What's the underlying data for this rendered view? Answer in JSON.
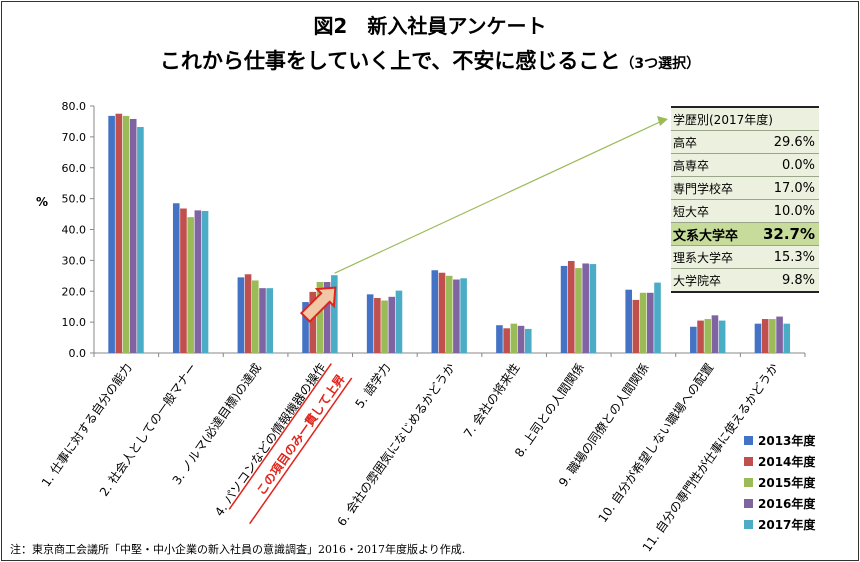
{
  "title_line1": "図2　新入社員アンケート",
  "title_line2_main": "これから仕事をしていく上で、不安に感じること",
  "title_line2_sub": "（3つ選択）",
  "footnote": "注：東京商工会議所「中堅・中小企業の新入社員の意識調査」2016・2017年度版より作成.",
  "colors": {
    "2013年度": "#4472c4",
    "2014年度": "#c0504d",
    "2015年度": "#9bbb59",
    "2016年度": "#8064a2",
    "2017年度": "#4bacc6",
    "annotation": "#e0241a",
    "arrow": "#9bbb59"
  },
  "chart_data": {
    "type": "bar",
    "ylabel": "%",
    "ylim": [
      0,
      80
    ],
    "yticks": [
      "0.0",
      "10.0",
      "20.0",
      "30.0",
      "40.0",
      "50.0",
      "60.0",
      "70.0",
      "80.0"
    ],
    "grid": false,
    "legend_position": "bottom-right",
    "categories": [
      "1. 仕事に対する自分の能力",
      "2. 社会人としての一般マナー",
      "3. ノルマ(必達目標)の達成",
      "4. パソコンなどの情報機器の操作",
      "5. 語学力",
      "6. 会社の雰囲気になじめるかどうか",
      "7. 会社の将来性",
      "8. 上司との人間関係",
      "9. 職場の同僚との人間関係",
      "10. 自分が希望しない職場への配置",
      "11. 自分の専門性が仕事に使えるかどうか"
    ],
    "series": [
      {
        "name": "2013年度",
        "values": [
          76.8,
          48.5,
          24.5,
          16.5,
          19.0,
          26.8,
          9.0,
          28.2,
          20.5,
          8.5,
          9.5
        ]
      },
      {
        "name": "2014年度",
        "values": [
          77.5,
          46.8,
          25.5,
          19.8,
          17.8,
          26.0,
          8.0,
          29.8,
          17.2,
          10.5,
          11.0
        ]
      },
      {
        "name": "2015年度",
        "values": [
          76.8,
          44.0,
          23.5,
          23.0,
          17.0,
          25.0,
          9.5,
          27.5,
          19.5,
          11.0,
          11.0
        ]
      },
      {
        "name": "2016年度",
        "values": [
          75.8,
          46.2,
          21.0,
          23.0,
          18.2,
          23.8,
          8.8,
          29.0,
          19.5,
          12.2,
          11.8
        ]
      },
      {
        "name": "2017年度",
        "values": [
          73.2,
          46.0,
          21.0,
          25.2,
          20.2,
          24.2,
          7.8,
          28.8,
          22.8,
          10.5,
          9.5
        ]
      }
    ],
    "annotation": "この項目のみ一貫して上昇",
    "inset_table": {
      "header": "学歴別(2017年度)",
      "rows": [
        {
          "label": "高卒",
          "value": "29.6%"
        },
        {
          "label": "高専卒",
          "value": "0.0%"
        },
        {
          "label": "専門学校卒",
          "value": "17.0%"
        },
        {
          "label": "短大卒",
          "value": "10.0%"
        },
        {
          "label": "文系大学卒",
          "value": "32.7%"
        },
        {
          "label": "理系大学卒",
          "value": "15.3%"
        },
        {
          "label": "大学院卒",
          "value": "9.8%"
        }
      ]
    }
  }
}
